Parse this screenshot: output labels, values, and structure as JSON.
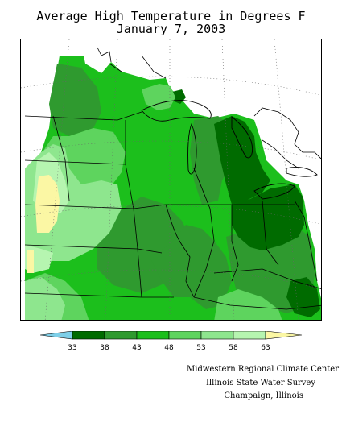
{
  "title": {
    "line1": "Average High Temperature in Degrees F",
    "line2": "January 7, 2003"
  },
  "colors": {
    "below_33": "#7ecfe8",
    "33_38": "#006b00",
    "38_43": "#2f9a2f",
    "43_48": "#1cbf1c",
    "48_53": "#5ed45e",
    "53_58": "#8ee68e",
    "58_63": "#b6f5b0",
    "above_63": "#fbf7a4"
  },
  "legend": {
    "ticks": [
      "33",
      "38",
      "43",
      "48",
      "53",
      "58",
      "63"
    ]
  },
  "credits": {
    "line1": "Midwestern Regional Climate Center",
    "line2": "Illinois State Water Survey",
    "line3": "Champaign, Illinois"
  }
}
